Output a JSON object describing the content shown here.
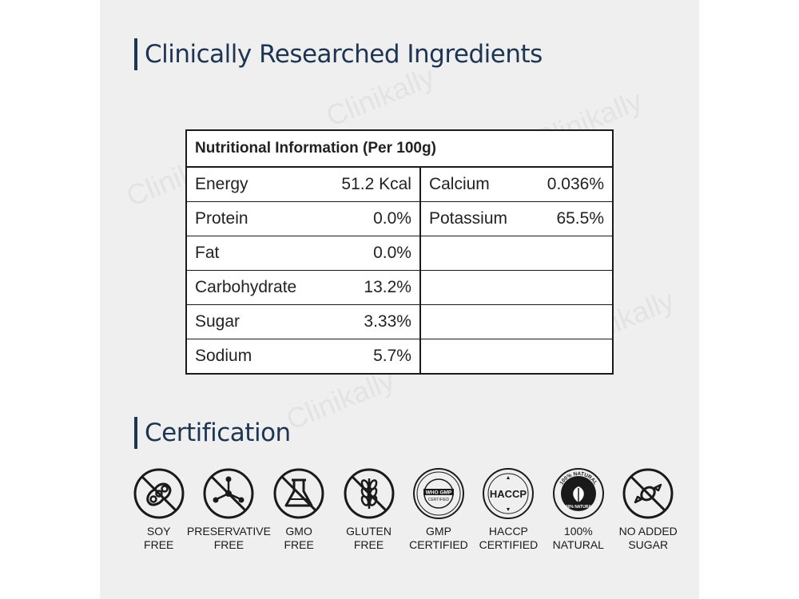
{
  "headings": {
    "ingredients": "Clinically Researched Ingredients",
    "certification": "Certification"
  },
  "watermark": "Clinikally",
  "nutrition": {
    "title": "Nutritional Information (Per 100g)",
    "left": [
      {
        "label": "Energy",
        "value": "51.2 Kcal"
      },
      {
        "label": "Protein",
        "value": "0.0%"
      },
      {
        "label": "Fat",
        "value": "0.0%"
      },
      {
        "label": "Carbohydrate",
        "value": "13.2%"
      },
      {
        "label": "Sugar",
        "value": "3.33%"
      },
      {
        "label": "Sodium",
        "value": "5.7%"
      }
    ],
    "right": [
      {
        "label": "Calcium",
        "value": "0.036%"
      },
      {
        "label": "Potassium",
        "value": "65.5%"
      },
      {
        "label": "",
        "value": ""
      },
      {
        "label": "",
        "value": ""
      },
      {
        "label": "",
        "value": ""
      },
      {
        "label": "",
        "value": ""
      }
    ]
  },
  "certifications": [
    {
      "icon": "soy-free-icon",
      "line1": "SOY",
      "line2": "FREE"
    },
    {
      "icon": "preservative-free-icon",
      "line1": "PRESERVATIVE",
      "line2": "FREE"
    },
    {
      "icon": "gmo-free-icon",
      "line1": "GMO",
      "line2": "FREE"
    },
    {
      "icon": "gluten-free-icon",
      "line1": "GLUTEN",
      "line2": "FREE"
    },
    {
      "icon": "gmp-certified-icon",
      "line1": "GMP",
      "line2": "CERTIFIED"
    },
    {
      "icon": "haccp-certified-icon",
      "line1": "HACCP",
      "line2": "CERTIFIED"
    },
    {
      "icon": "natural-icon",
      "line1": "100%",
      "line2": "NATURAL"
    },
    {
      "icon": "no-added-sugar-icon",
      "line1": "NO ADDED",
      "line2": "SUGAR"
    }
  ],
  "badges": {
    "gmp_inner": "WHO GMP",
    "gmp_sub": "CERTIFIED",
    "haccp_inner": "HACCP",
    "natural_top": "100% NATURAL",
    "natural_bottom": "100% NATURAL"
  }
}
